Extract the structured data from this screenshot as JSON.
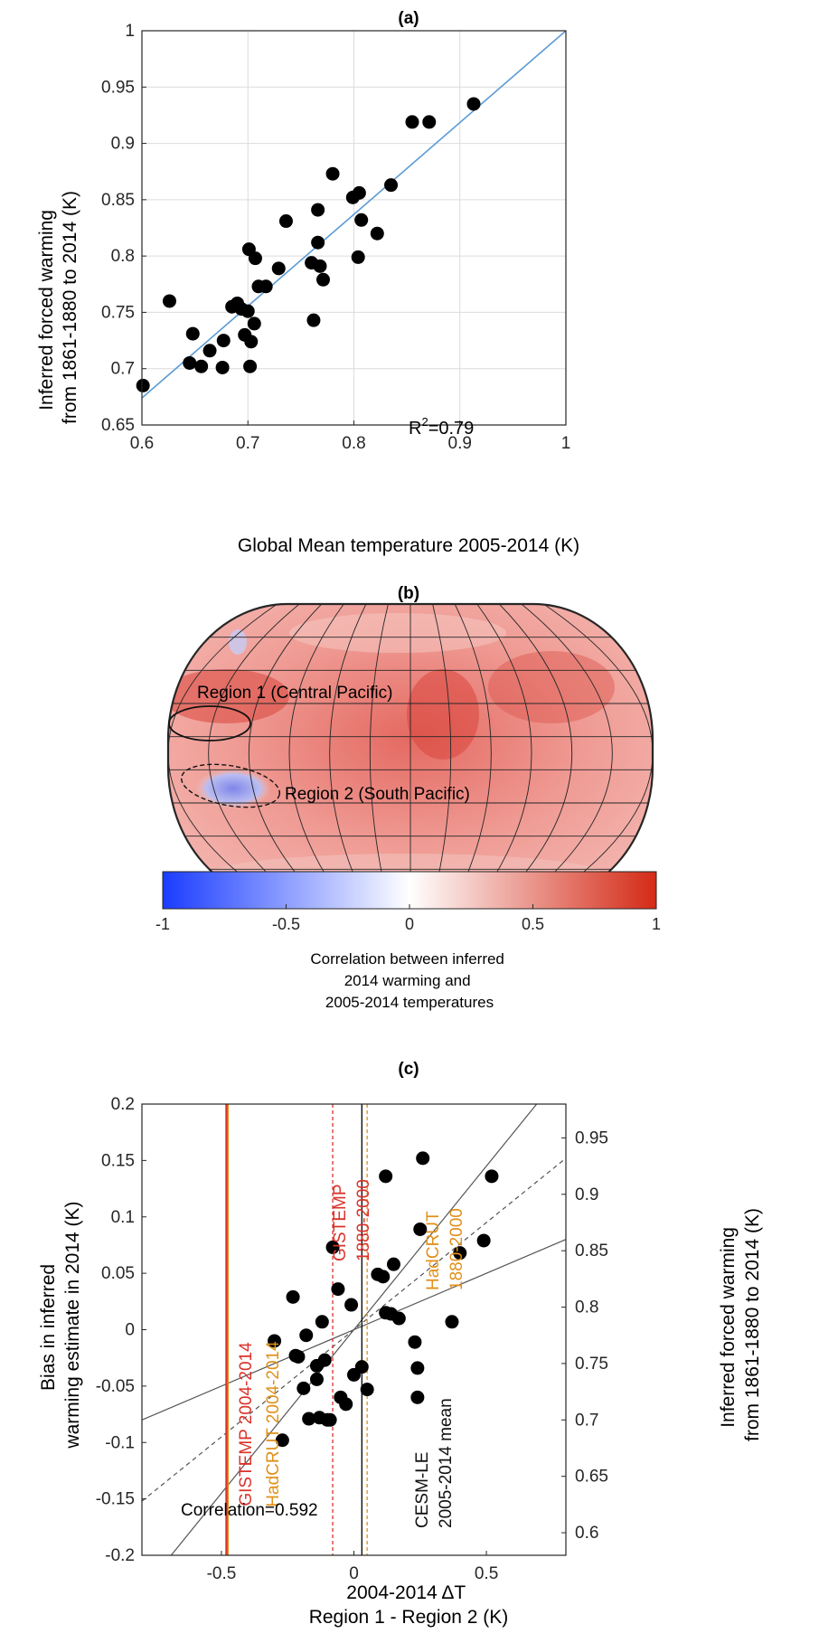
{
  "chart_data": [
    {
      "panel": "(a)",
      "type": "scatter",
      "xlabel": "Global Mean temperature 2005-2014 (K)",
      "ylabel_lines": [
        "Inferred forced warming",
        "from 1861-1880 to 2014 (K)"
      ],
      "xlim": [
        0.6,
        1.0
      ],
      "ylim": [
        0.65,
        1.0
      ],
      "xticks": [
        "0.6",
        "0.7",
        "0.8",
        "0.9",
        "1"
      ],
      "yticks": [
        "0.65",
        "0.7",
        "0.75",
        "0.8",
        "0.85",
        "0.9",
        "0.95",
        "1"
      ],
      "grid": true,
      "annotation": {
        "text": "R",
        "sup": "2",
        "rest": "=0.79"
      },
      "fit_line": {
        "x": [
          0.6,
          1.0
        ],
        "y": [
          0.674,
          1.0
        ],
        "color": "#5b9bd5"
      },
      "points": [
        [
          0.601,
          0.685
        ],
        [
          0.626,
          0.76
        ],
        [
          0.645,
          0.705
        ],
        [
          0.648,
          0.731
        ],
        [
          0.656,
          0.702
        ],
        [
          0.664,
          0.716
        ],
        [
          0.676,
          0.701
        ],
        [
          0.677,
          0.725
        ],
        [
          0.685,
          0.755
        ],
        [
          0.69,
          0.758
        ],
        [
          0.694,
          0.753
        ],
        [
          0.697,
          0.73
        ],
        [
          0.7,
          0.751
        ],
        [
          0.701,
          0.806
        ],
        [
          0.702,
          0.702
        ],
        [
          0.703,
          0.724
        ],
        [
          0.706,
          0.74
        ],
        [
          0.707,
          0.798
        ],
        [
          0.71,
          0.773
        ],
        [
          0.717,
          0.773
        ],
        [
          0.729,
          0.789
        ],
        [
          0.736,
          0.831
        ],
        [
          0.76,
          0.794
        ],
        [
          0.762,
          0.743
        ],
        [
          0.766,
          0.812
        ],
        [
          0.766,
          0.841
        ],
        [
          0.768,
          0.791
        ],
        [
          0.771,
          0.779
        ],
        [
          0.78,
          0.873
        ],
        [
          0.799,
          0.852
        ],
        [
          0.804,
          0.799
        ],
        [
          0.805,
          0.856
        ],
        [
          0.807,
          0.832
        ],
        [
          0.822,
          0.82
        ],
        [
          0.835,
          0.863
        ],
        [
          0.855,
          0.919
        ],
        [
          0.871,
          0.919
        ],
        [
          0.913,
          0.935
        ]
      ]
    },
    {
      "panel": "(b)",
      "type": "heatmap",
      "projection": "robinson-map",
      "regions": [
        {
          "label": "Region 1 (Central Pacific)",
          "style": "solid"
        },
        {
          "label": "Region 2 (South Pacific)",
          "style": "dashed"
        }
      ],
      "colorbar": {
        "min": -1,
        "max": 1,
        "ticks": [
          "-1",
          "-0.5",
          "0",
          "0.5",
          "1"
        ],
        "colors": [
          "#1a3cff",
          "#ffffff",
          "#d42a16"
        ],
        "label_lines": [
          "Correlation between inferred",
          "2014 warming and",
          "2005-2014 temperatures"
        ]
      }
    },
    {
      "panel": "(c)",
      "type": "scatter",
      "xlabel_lines": [
        "2004-2014 ΔT",
        "Region 1 - Region 2 (K)"
      ],
      "ylabel_lines": [
        "Bias in inferred",
        "warming estimate in 2014 (K)"
      ],
      "ylabel_right_lines": [
        "Inferred forced warming",
        "from 1861-1880 to 2014 (K)"
      ],
      "xlim": [
        -0.8,
        0.8
      ],
      "ylim": [
        -0.2,
        0.2
      ],
      "xticks": [
        "-0.5",
        "0",
        "0.5"
      ],
      "yticks": [
        "-0.2",
        "-0.15",
        "-0.1",
        "-0.05",
        "0",
        "0.05",
        "0.1",
        "0.15",
        "0.2"
      ],
      "yticks_right": [
        "0.6",
        "0.65",
        "0.7",
        "0.75",
        "0.8",
        "0.85",
        "0.9",
        "0.95"
      ],
      "ylim_right": [
        0.58,
        0.98
      ],
      "grid": false,
      "annotation": "Correlation=0.592",
      "regression_slope": 0.19,
      "bound_slopes": [
        0.1,
        0.29
      ],
      "vlines": [
        {
          "x": -0.48,
          "label": "GISTEMP 2004-2014",
          "color": "#d9332b",
          "style": "solid"
        },
        {
          "x": -0.48,
          "label": "HadCRUT 2004-2014",
          "color": "#e0901a",
          "style": "solid"
        },
        {
          "x": -0.08,
          "label_lines": [
            "GISTEMP",
            "1880-2000"
          ],
          "color": "#d9332b",
          "style": "dashed"
        },
        {
          "x": 0.05,
          "label_lines": [
            "HadCRUT",
            "1880-2000"
          ],
          "color": "#e0901a",
          "style": "dashed"
        },
        {
          "x": 0.03,
          "label_lines": [
            "CESM-LE",
            "2005-2014 mean"
          ],
          "color": "#000000",
          "style": "solid"
        }
      ],
      "points": [
        [
          -0.3,
          -0.01
        ],
        [
          -0.27,
          -0.098
        ],
        [
          -0.23,
          0.029
        ],
        [
          -0.22,
          -0.023
        ],
        [
          -0.21,
          -0.024
        ],
        [
          -0.19,
          -0.052
        ],
        [
          -0.18,
          -0.005
        ],
        [
          -0.17,
          -0.079
        ],
        [
          -0.14,
          -0.044
        ],
        [
          -0.14,
          -0.032
        ],
        [
          -0.13,
          -0.078
        ],
        [
          -0.12,
          0.007
        ],
        [
          -0.11,
          -0.027
        ],
        [
          -0.1,
          -0.08
        ],
        [
          -0.09,
          -0.08
        ],
        [
          -0.08,
          0.073
        ],
        [
          -0.06,
          0.036
        ],
        [
          -0.05,
          -0.06
        ],
        [
          -0.03,
          -0.066
        ],
        [
          -0.01,
          0.022
        ],
        [
          0.0,
          -0.04
        ],
        [
          0.03,
          -0.033
        ],
        [
          0.05,
          -0.053
        ],
        [
          0.09,
          0.049
        ],
        [
          0.11,
          0.047
        ],
        [
          0.12,
          0.136
        ],
        [
          0.12,
          0.015
        ],
        [
          0.14,
          0.014
        ],
        [
          0.15,
          0.058
        ],
        [
          0.17,
          0.01
        ],
        [
          0.23,
          -0.011
        ],
        [
          0.24,
          -0.034
        ],
        [
          0.24,
          -0.06
        ],
        [
          0.25,
          0.089
        ],
        [
          0.26,
          0.152
        ],
        [
          0.37,
          0.007
        ],
        [
          0.4,
          0.068
        ],
        [
          0.49,
          0.079
        ],
        [
          0.52,
          0.136
        ]
      ]
    }
  ]
}
